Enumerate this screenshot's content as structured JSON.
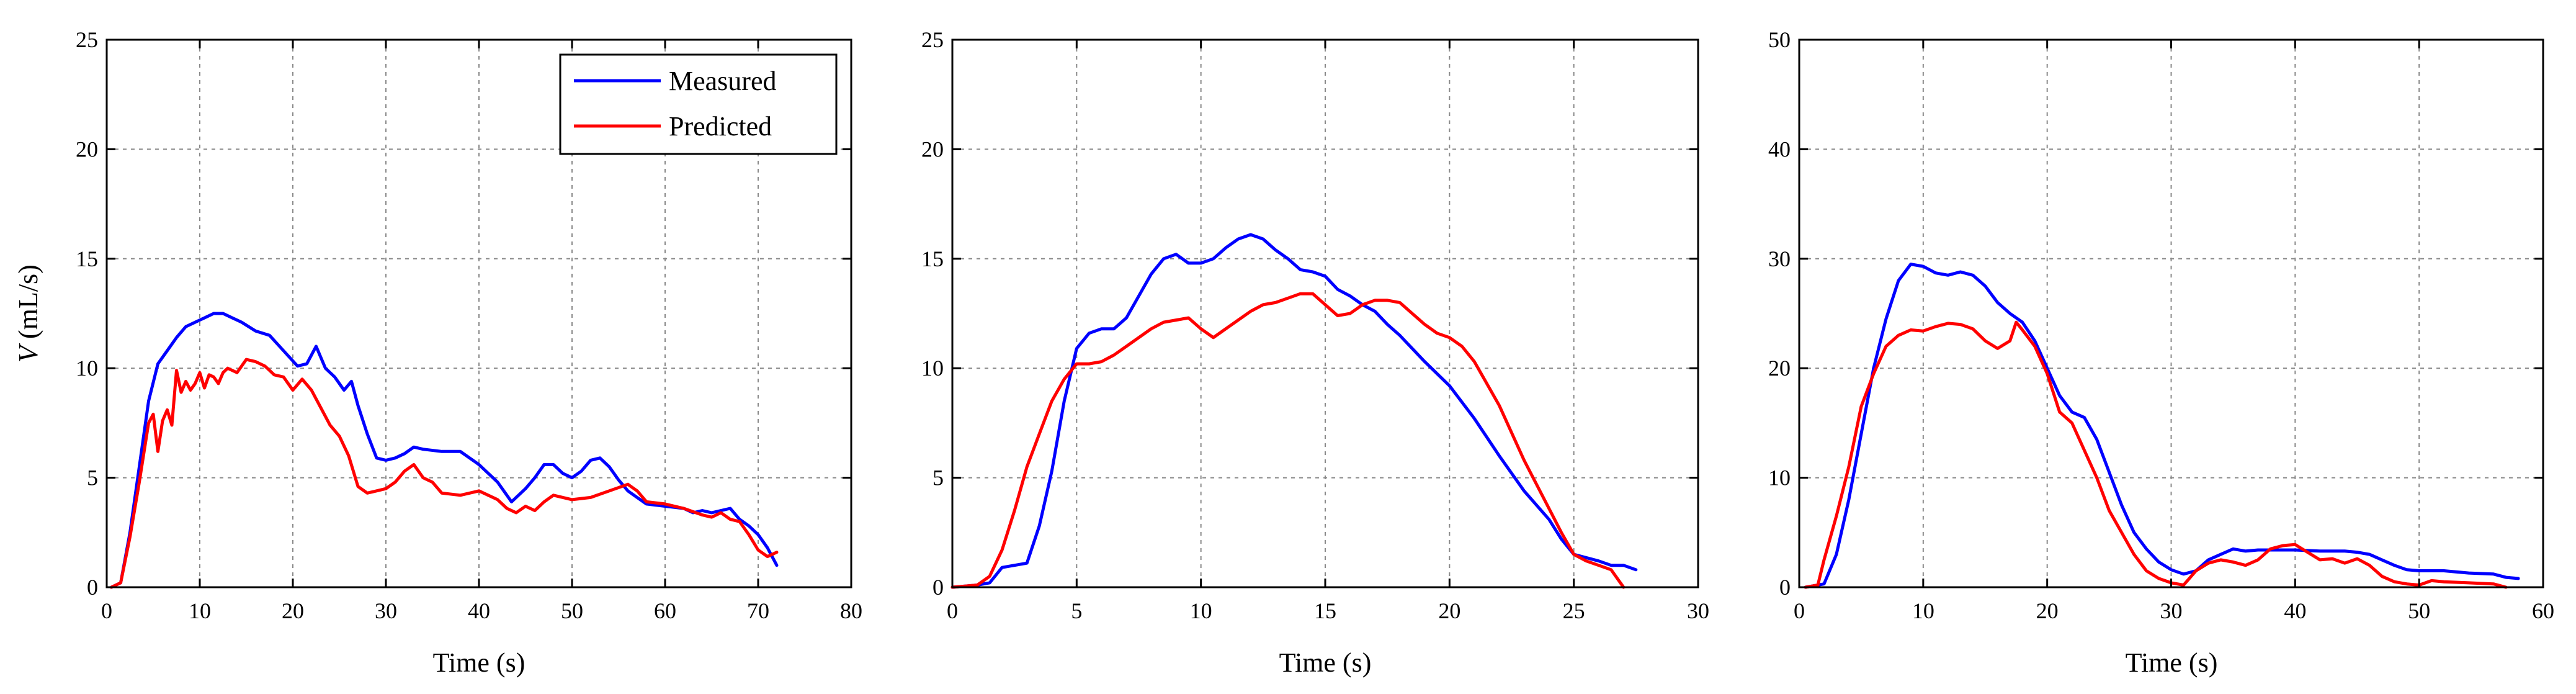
{
  "colors": {
    "measured": "#0000ff",
    "predicted": "#ff0000"
  },
  "chart_data": [
    {
      "type": "line",
      "title": "",
      "xlabel": "Time (s)",
      "ylabel_var": "V",
      "ylabel_unit": " (mL/s)",
      "xlim": [
        0,
        80
      ],
      "ylim": [
        0,
        25
      ],
      "xticks": [
        0,
        10,
        20,
        30,
        40,
        50,
        60,
        70,
        80
      ],
      "yticks": [
        0,
        5,
        10,
        15,
        20,
        25
      ],
      "grid": true,
      "legend": "top-right",
      "series": [
        {
          "name": "Measured",
          "color": "#0000ff",
          "x": [
            0.5,
            1.5,
            2.5,
            3.5,
            4.5,
            5.5,
            6.5,
            7.5,
            8.5,
            9.5,
            10.5,
            11.5,
            12.5,
            13.5,
            14.5,
            16,
            17.5,
            19,
            20.5,
            21.5,
            22.5,
            23.5,
            24.5,
            25.5,
            26.3,
            27,
            28,
            29,
            30,
            31,
            32,
            33,
            34,
            36,
            38,
            40,
            42,
            43.5,
            45,
            46,
            47,
            48,
            49,
            50,
            51,
            52,
            53,
            54,
            55,
            56,
            57,
            58,
            60,
            62,
            63,
            64,
            65,
            66,
            67,
            68,
            69,
            70,
            71,
            72
          ],
          "y": [
            0,
            0.2,
            2.5,
            5.5,
            8.5,
            10.2,
            10.8,
            11.4,
            11.9,
            12.1,
            12.3,
            12.5,
            12.5,
            12.3,
            12.1,
            11.7,
            11.5,
            10.8,
            10.1,
            10.2,
            11.0,
            10.0,
            9.6,
            9.0,
            9.4,
            8.3,
            7.0,
            5.9,
            5.8,
            5.9,
            6.1,
            6.4,
            6.3,
            6.2,
            6.2,
            5.6,
            4.8,
            3.9,
            4.5,
            5.0,
            5.6,
            5.6,
            5.2,
            5.0,
            5.3,
            5.8,
            5.9,
            5.5,
            4.9,
            4.4,
            4.1,
            3.8,
            3.7,
            3.6,
            3.4,
            3.5,
            3.4,
            3.5,
            3.6,
            3.1,
            2.8,
            2.4,
            1.8,
            1.0
          ]
        },
        {
          "name": "Predicted",
          "color": "#ff0000",
          "x": [
            0.5,
            1.5,
            2.5,
            3.5,
            4.5,
            5,
            5.5,
            6,
            6.5,
            7,
            7.5,
            8,
            8.5,
            9,
            9.5,
            10,
            10.5,
            11,
            11.5,
            12,
            12.5,
            13,
            14,
            15,
            16,
            17,
            18,
            19,
            20,
            21,
            22,
            23,
            24,
            25,
            26,
            27,
            28,
            29,
            30,
            31,
            32,
            33,
            34,
            35,
            36,
            38,
            40,
            42,
            43,
            44,
            45,
            46,
            47,
            48,
            50,
            52,
            54,
            56,
            57,
            58,
            60,
            62,
            64,
            65,
            66,
            67,
            68,
            69,
            70,
            71,
            72
          ],
          "y": [
            0,
            0.2,
            2.3,
            4.8,
            7.5,
            7.9,
            6.2,
            7.6,
            8.1,
            7.4,
            9.9,
            8.9,
            9.4,
            9.0,
            9.3,
            9.8,
            9.1,
            9.7,
            9.6,
            9.3,
            9.8,
            10.0,
            9.8,
            10.4,
            10.3,
            10.1,
            9.7,
            9.6,
            9.0,
            9.5,
            9.0,
            8.2,
            7.4,
            6.9,
            6.0,
            4.6,
            4.3,
            4.4,
            4.5,
            4.8,
            5.3,
            5.6,
            5.0,
            4.8,
            4.3,
            4.2,
            4.4,
            4.0,
            3.6,
            3.4,
            3.7,
            3.5,
            3.9,
            4.2,
            4.0,
            4.1,
            4.4,
            4.7,
            4.4,
            3.9,
            3.8,
            3.6,
            3.3,
            3.2,
            3.4,
            3.1,
            3.0,
            2.4,
            1.7,
            1.4,
            1.6
          ]
        }
      ]
    },
    {
      "type": "line",
      "title": "",
      "xlabel": "Time (s)",
      "xlim": [
        0,
        30
      ],
      "ylim": [
        0,
        25
      ],
      "xticks": [
        0,
        5,
        10,
        15,
        20,
        25,
        30
      ],
      "yticks": [
        0,
        5,
        10,
        15,
        20,
        25
      ],
      "grid": true,
      "series": [
        {
          "name": "Measured",
          "color": "#0000ff",
          "x": [
            0,
            1,
            1.5,
            2,
            2.5,
            3,
            3.5,
            4,
            4.5,
            5,
            5.5,
            6,
            6.5,
            7,
            7.5,
            8,
            8.5,
            9,
            9.5,
            10,
            10.5,
            11,
            11.5,
            12,
            12.5,
            13,
            13.5,
            14,
            14.5,
            15,
            15.5,
            16,
            16.5,
            17,
            17.5,
            18,
            19,
            20,
            21,
            22,
            23,
            24,
            24.5,
            25,
            26,
            26.5,
            27,
            27.5
          ],
          "y": [
            0,
            0.1,
            0.2,
            0.9,
            1.0,
            1.1,
            2.8,
            5.3,
            8.5,
            10.9,
            11.6,
            11.8,
            11.8,
            12.3,
            13.3,
            14.3,
            15.0,
            15.2,
            14.8,
            14.8,
            15.0,
            15.5,
            15.9,
            16.1,
            15.9,
            15.4,
            15.0,
            14.5,
            14.4,
            14.2,
            13.6,
            13.3,
            12.9,
            12.6,
            12.0,
            11.5,
            10.3,
            9.2,
            7.7,
            6.0,
            4.4,
            3.1,
            2.2,
            1.5,
            1.2,
            1.0,
            1.0,
            0.8
          ]
        },
        {
          "name": "Predicted",
          "color": "#ff0000",
          "x": [
            0,
            1,
            1.5,
            2,
            2.5,
            3,
            3.5,
            4,
            4.5,
            5,
            5.5,
            6,
            6.5,
            7,
            7.5,
            8,
            8.5,
            9,
            9.5,
            10,
            10.5,
            11,
            11.5,
            12,
            12.5,
            13,
            13.5,
            14,
            14.5,
            15,
            15.5,
            16,
            16.5,
            17,
            17.5,
            18,
            18.5,
            19,
            19.5,
            20,
            20.5,
            21,
            22,
            23,
            24,
            24.5,
            25,
            25.5,
            26,
            26.5,
            27
          ],
          "y": [
            0,
            0.1,
            0.5,
            1.7,
            3.5,
            5.5,
            7.0,
            8.5,
            9.5,
            10.2,
            10.2,
            10.3,
            10.6,
            11.0,
            11.4,
            11.8,
            12.1,
            12.2,
            12.3,
            11.8,
            11.4,
            11.8,
            12.2,
            12.6,
            12.9,
            13.0,
            13.2,
            13.4,
            13.4,
            12.9,
            12.4,
            12.5,
            12.9,
            13.1,
            13.1,
            13.0,
            12.5,
            12.0,
            11.6,
            11.4,
            11.0,
            10.3,
            8.3,
            5.8,
            3.6,
            2.5,
            1.5,
            1.2,
            1.0,
            0.8,
            0.0
          ]
        }
      ]
    },
    {
      "type": "line",
      "title": "",
      "xlabel": "Time (s)",
      "xlim": [
        0,
        60
      ],
      "ylim": [
        0,
        50
      ],
      "xticks": [
        0,
        10,
        20,
        30,
        40,
        50,
        60
      ],
      "yticks": [
        0,
        10,
        20,
        30,
        40,
        50
      ],
      "grid": true,
      "series": [
        {
          "name": "Measured",
          "color": "#0000ff",
          "x": [
            0.5,
            2,
            3,
            4,
            5,
            6,
            7,
            8,
            9,
            10,
            11,
            12,
            13,
            14,
            15,
            16,
            17,
            18,
            19,
            20,
            21,
            22,
            23,
            24,
            25,
            26,
            27,
            28,
            29,
            30,
            31,
            32,
            33,
            34,
            35,
            36,
            37,
            38,
            39,
            40,
            42,
            44,
            45,
            46,
            47,
            48,
            49,
            50,
            52,
            54,
            56,
            57,
            58
          ],
          "y": [
            0,
            0.3,
            3,
            8,
            14,
            20,
            24.5,
            28,
            29.5,
            29.3,
            28.7,
            28.5,
            28.8,
            28.5,
            27.5,
            26.0,
            25.0,
            24.2,
            22.5,
            20.0,
            17.5,
            16.0,
            15.5,
            13.5,
            10.5,
            7.5,
            5.0,
            3.5,
            2.3,
            1.6,
            1.2,
            1.5,
            2.5,
            3.0,
            3.5,
            3.3,
            3.4,
            3.4,
            3.4,
            3.4,
            3.3,
            3.3,
            3.2,
            3.0,
            2.5,
            2.0,
            1.6,
            1.5,
            1.5,
            1.3,
            1.2,
            0.9,
            0.8
          ]
        },
        {
          "name": "Predicted",
          "color": "#ff0000",
          "x": [
            0.5,
            1.5,
            2,
            3,
            4,
            5,
            6,
            7,
            8,
            9,
            10,
            11,
            12,
            13,
            14,
            15,
            16,
            17,
            17.5,
            18,
            19,
            20,
            21,
            22,
            23,
            24,
            25,
            26,
            27,
            28,
            29,
            30,
            31,
            32,
            33,
            34,
            35,
            36,
            37,
            38,
            39,
            40,
            41,
            42,
            43,
            44,
            45,
            46,
            47,
            48,
            49,
            50,
            51,
            52,
            54,
            56,
            57
          ],
          "y": [
            0,
            0.2,
            2.5,
            6.5,
            11,
            16.5,
            19.5,
            22.0,
            23.0,
            23.5,
            23.4,
            23.8,
            24.1,
            24.0,
            23.6,
            22.5,
            21.8,
            22.5,
            24.2,
            23.5,
            22.0,
            19.5,
            16.0,
            15.0,
            12.5,
            10.0,
            7.0,
            5.0,
            3.0,
            1.5,
            0.8,
            0.4,
            0.2,
            1.5,
            2.2,
            2.5,
            2.3,
            2.0,
            2.5,
            3.5,
            3.8,
            3.9,
            3.2,
            2.5,
            2.6,
            2.2,
            2.6,
            2.0,
            1.0,
            0.5,
            0.3,
            0.2,
            0.6,
            0.5,
            0.4,
            0.3,
            0.0
          ]
        }
      ]
    }
  ]
}
